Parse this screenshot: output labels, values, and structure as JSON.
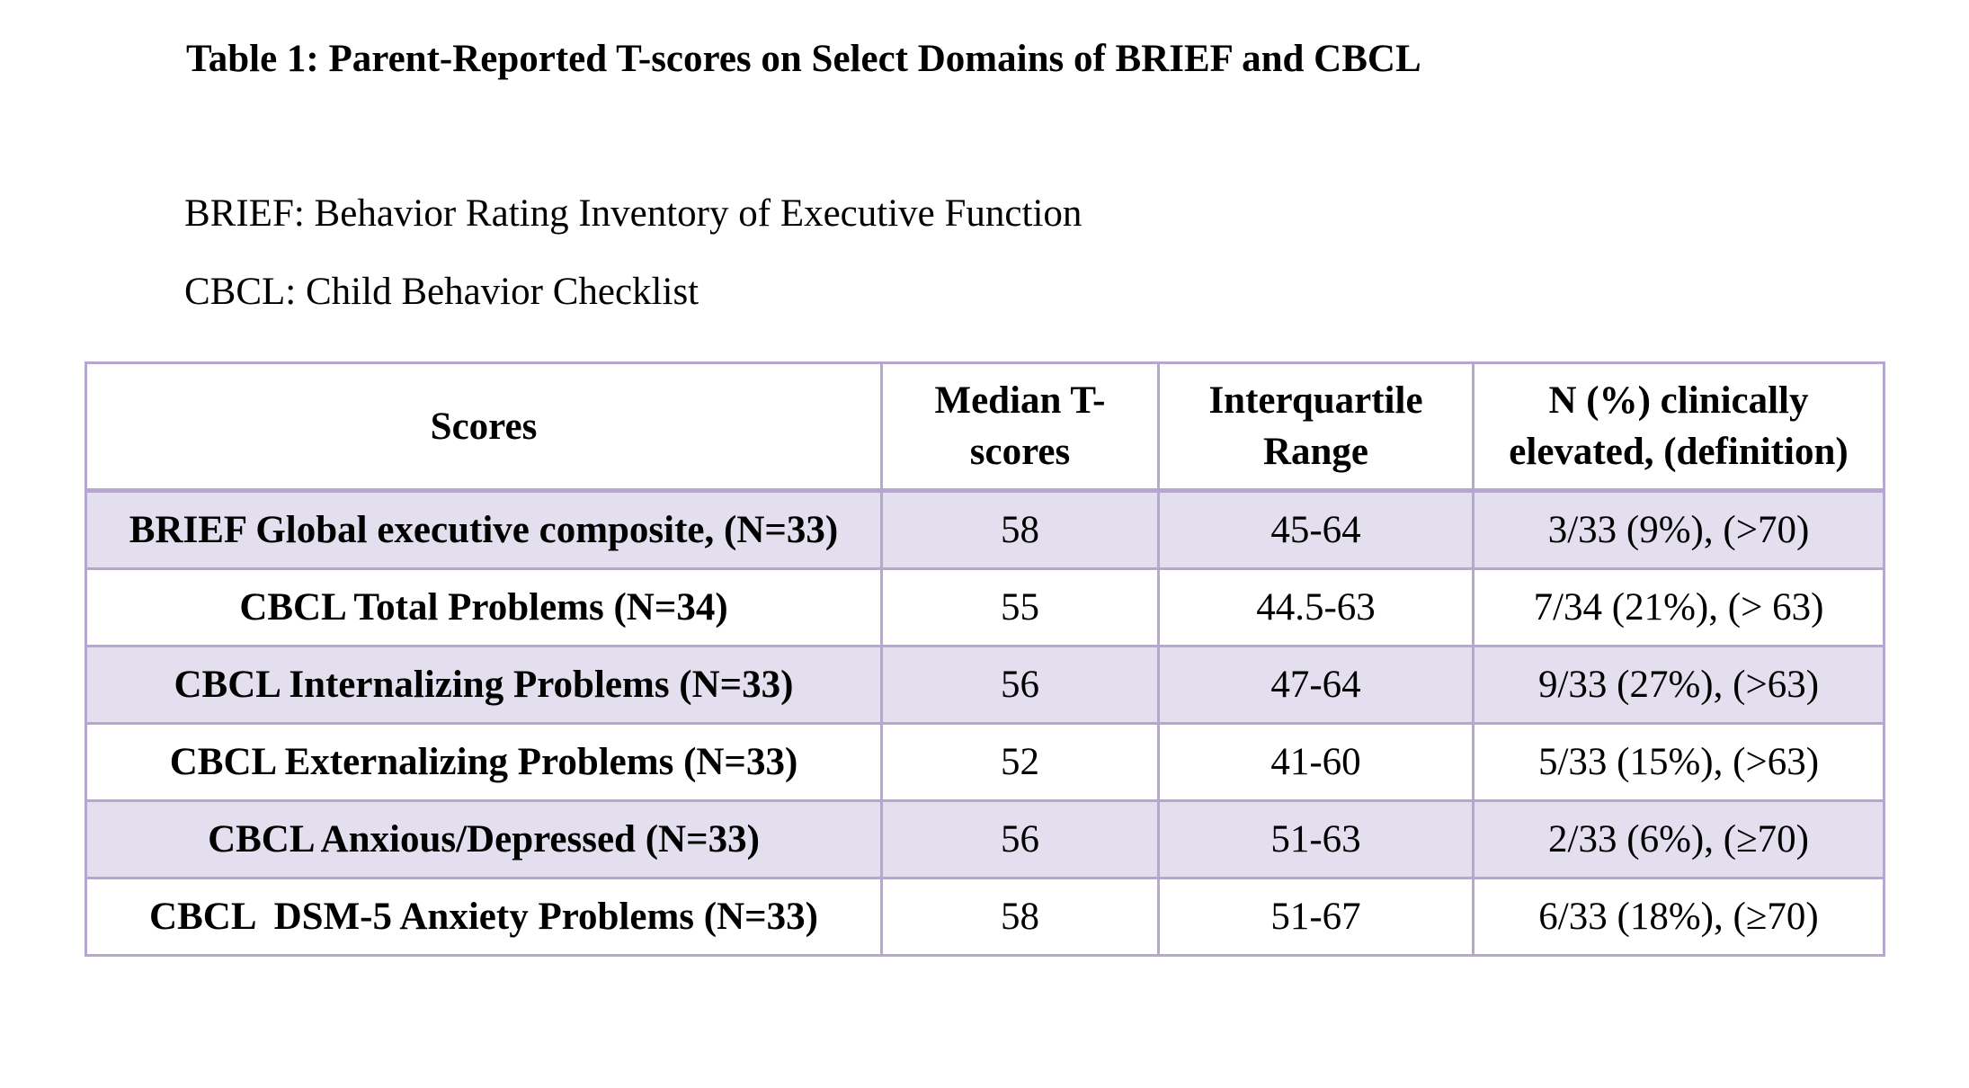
{
  "title": "Table 1: Parent-Reported T-scores on Select Domains of BRIEF and CBCL",
  "abbreviations": {
    "brief": "BRIEF: Behavior Rating Inventory of Executive Function",
    "cbcl": "CBCL: Child Behavior Checklist"
  },
  "table": {
    "headers": {
      "scores": "Scores",
      "median_line1": "Median T-",
      "median_line2": "scores",
      "iqr_line1": "Interquartile",
      "iqr_line2": "Range",
      "elevated_line1": "N (%) clinically",
      "elevated_line2": "elevated, (definition)"
    },
    "rows": [
      {
        "score": "BRIEF Global executive composite, (N=33)",
        "median": "58",
        "iqr": "45-64",
        "elevated": "3/33 (9%), (>70)"
      },
      {
        "score": "CBCL Total Problems (N=34)",
        "median": "55",
        "iqr": "44.5-63",
        "elevated": "7/34 (21%), (> 63)"
      },
      {
        "score": "CBCL Internalizing Problems (N=33)",
        "median": "56",
        "iqr": "47-64",
        "elevated": "9/33 (27%), (>63)"
      },
      {
        "score": "CBCL Externalizing Problems (N=33)",
        "median": "52",
        "iqr": "41-60",
        "elevated": "5/33 (15%), (>63)"
      },
      {
        "score": "CBCL Anxious/Depressed (N=33)",
        "median": "56",
        "iqr": "51-63",
        "elevated": "2/33 (6%), (≥70)"
      },
      {
        "score": "CBCL  DSM-5 Anxiety Problems (N=33)",
        "median": "58",
        "iqr": "51-67",
        "elevated": "6/33 (18%), (≥70)"
      }
    ]
  },
  "colors": {
    "border": "#b7a6cf",
    "shaded_row": "#e4dfee"
  }
}
